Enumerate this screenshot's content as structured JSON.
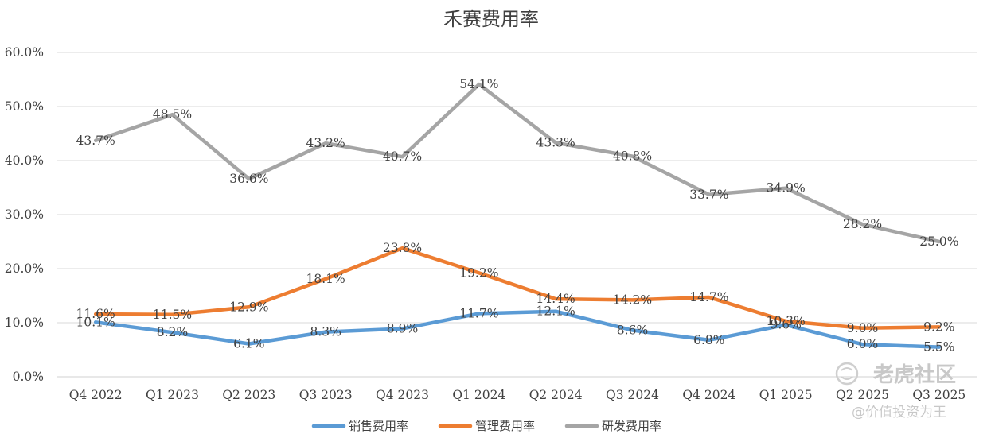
{
  "chart_data": {
    "type": "line",
    "title": "禾赛费用率",
    "xlabel": "",
    "ylabel": "",
    "ylim": [
      0,
      60
    ],
    "yticks": [
      "0.0%",
      "10.0%",
      "20.0%",
      "30.0%",
      "40.0%",
      "50.0%",
      "60.0%"
    ],
    "categories": [
      "Q4 2022",
      "Q1 2023",
      "Q2 2023",
      "Q3 2023",
      "Q4 2023",
      "Q1 2024",
      "Q2 2024",
      "Q3 2024",
      "Q4 2024",
      "Q1 2025",
      "Q2 2025",
      "Q3 2025"
    ],
    "grid": true,
    "legend_position": "bottom",
    "series": [
      {
        "name": "销售费用率",
        "color": "#5b9bd5",
        "values": [
          10.1,
          8.2,
          6.1,
          8.3,
          8.9,
          11.7,
          12.1,
          8.6,
          6.8,
          9.6,
          6.0,
          5.5
        ],
        "labels": [
          "10.1%",
          "8.2%",
          "6.1%",
          "8.3%",
          "8.9%",
          "11.7%",
          "12.1%",
          "8.6%",
          "6.8%",
          "9.6%",
          "6.0%",
          "5.5%"
        ]
      },
      {
        "name": "管理费用率",
        "color": "#ed7d31",
        "values": [
          11.6,
          11.5,
          12.9,
          18.1,
          23.8,
          19.2,
          14.4,
          14.2,
          14.7,
          10.3,
          9.0,
          9.2
        ],
        "labels": [
          "11.6%",
          "11.5%",
          "12.9%",
          "18.1%",
          "23.8%",
          "19.2%",
          "14.4%",
          "14.2%",
          "14.7%",
          "10.3%",
          "9.0%",
          "9.2%"
        ]
      },
      {
        "name": "研发费用率",
        "color": "#a5a5a5",
        "values": [
          43.7,
          48.5,
          36.6,
          43.2,
          40.7,
          54.1,
          43.3,
          40.8,
          33.7,
          34.9,
          28.2,
          25.0
        ],
        "labels": [
          "43.7%",
          "48.5%",
          "36.6%",
          "43.2%",
          "40.7%",
          "54.1%",
          "43.3%",
          "40.8%",
          "33.7%",
          "34.9%",
          "28.2%",
          "25.0%"
        ]
      }
    ]
  },
  "watermark": {
    "brand": "老虎社区",
    "author": "@价值投资为王"
  }
}
